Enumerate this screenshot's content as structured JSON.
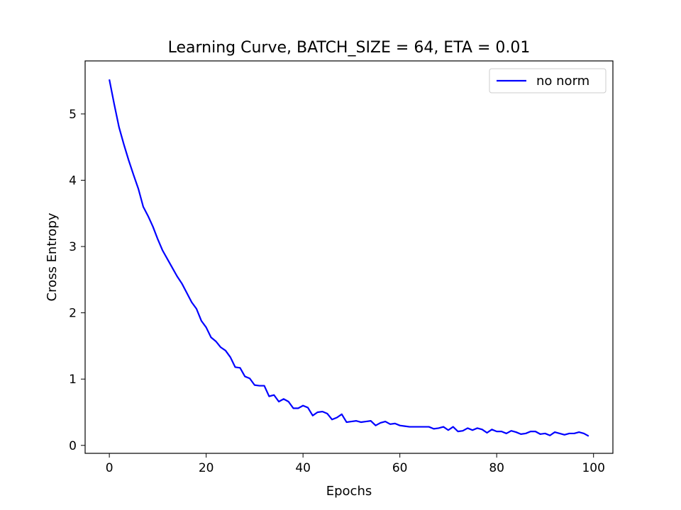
{
  "chart_data": {
    "type": "line",
    "title": "Learning Curve, BATCH_SIZE = 64, ETA = 0.01",
    "xlabel": "Epochs",
    "ylabel": "Cross Entropy",
    "xlim": [
      -5,
      104
    ],
    "ylim": [
      -0.12,
      5.8
    ],
    "xticks": [
      0,
      20,
      40,
      60,
      80,
      100
    ],
    "yticks": [
      0,
      1,
      2,
      3,
      4,
      5
    ],
    "grid": false,
    "legend": {
      "position": "top-right"
    },
    "series": [
      {
        "name": "no norm",
        "color": "#0000ff",
        "x": [
          0,
          1,
          2,
          3,
          4,
          5,
          6,
          7,
          8,
          9,
          10,
          11,
          12,
          13,
          14,
          15,
          16,
          17,
          18,
          19,
          20,
          21,
          22,
          23,
          24,
          25,
          26,
          27,
          28,
          29,
          30,
          31,
          32,
          33,
          34,
          35,
          36,
          37,
          38,
          39,
          40,
          41,
          42,
          43,
          44,
          45,
          46,
          47,
          48,
          49,
          50,
          51,
          52,
          53,
          54,
          55,
          56,
          57,
          58,
          59,
          60,
          61,
          62,
          63,
          64,
          65,
          66,
          67,
          68,
          69,
          70,
          71,
          72,
          73,
          74,
          75,
          76,
          77,
          78,
          79,
          80,
          81,
          82,
          83,
          84,
          85,
          86,
          87,
          88,
          89,
          90,
          91,
          92,
          93,
          94,
          95,
          96,
          97,
          98,
          99
        ],
        "values": [
          5.52,
          5.15,
          4.8,
          4.54,
          4.3,
          4.08,
          3.87,
          3.6,
          3.46,
          3.3,
          3.11,
          2.94,
          2.81,
          2.68,
          2.55,
          2.44,
          2.3,
          2.16,
          2.06,
          1.88,
          1.78,
          1.63,
          1.57,
          1.48,
          1.43,
          1.33,
          1.18,
          1.17,
          1.04,
          1.01,
          0.91,
          0.9,
          0.9,
          0.74,
          0.76,
          0.66,
          0.7,
          0.66,
          0.56,
          0.56,
          0.6,
          0.57,
          0.45,
          0.5,
          0.51,
          0.48,
          0.39,
          0.42,
          0.47,
          0.35,
          0.36,
          0.37,
          0.35,
          0.36,
          0.37,
          0.3,
          0.34,
          0.36,
          0.32,
          0.33,
          0.3,
          0.29,
          0.28,
          0.28,
          0.28,
          0.28,
          0.28,
          0.25,
          0.26,
          0.28,
          0.23,
          0.28,
          0.21,
          0.22,
          0.26,
          0.23,
          0.26,
          0.24,
          0.19,
          0.24,
          0.21,
          0.21,
          0.18,
          0.22,
          0.2,
          0.17,
          0.18,
          0.21,
          0.21,
          0.17,
          0.18,
          0.15,
          0.2,
          0.18,
          0.16,
          0.18,
          0.18,
          0.2,
          0.18,
          0.14
        ]
      }
    ]
  }
}
